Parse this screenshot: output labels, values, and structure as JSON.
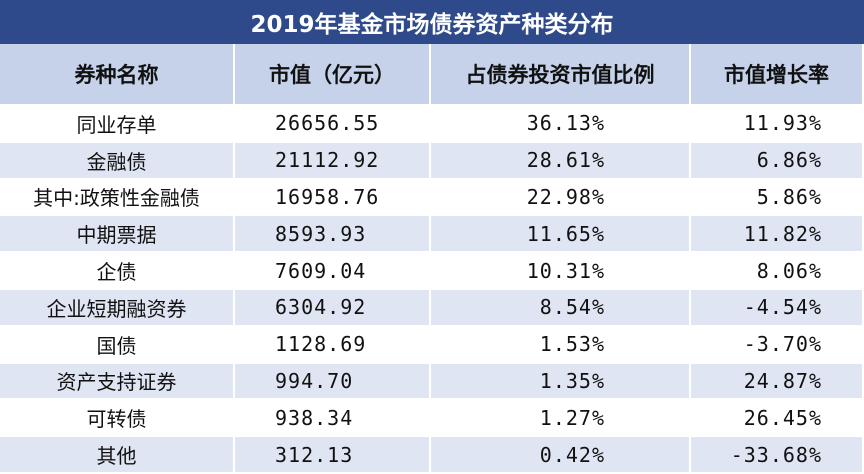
{
  "title": "2019年基金市场债券资产种类分布",
  "table": {
    "header": [
      "券种名称",
      "市值（亿元）",
      "占债券投资市值比例",
      "市值增长率"
    ],
    "rows": [
      [
        "同业存单",
        "26656.55",
        "36.13%",
        "11.93%"
      ],
      [
        "金融债",
        "21112.92",
        "28.61%",
        "6.86%"
      ],
      [
        "其中:政策性金融债",
        "16958.76",
        "22.98%",
        "5.86%"
      ],
      [
        "中期票据",
        "8593.93",
        "11.65%",
        "11.82%"
      ],
      [
        "企债",
        "7609.04",
        "10.31%",
        "8.06%"
      ],
      [
        "企业短期融资券",
        "6304.92",
        "8.54%",
        "-4.54%"
      ],
      [
        "国债",
        "1128.69",
        "1.53%",
        "-3.70%"
      ],
      [
        "资产支持证券",
        "994.70",
        "1.35%",
        "24.87%"
      ],
      [
        "可转债",
        "938.34",
        "1.27%",
        "26.45%"
      ],
      [
        "其他",
        "312.13",
        "0.42%",
        "-33.68%"
      ]
    ]
  }
}
